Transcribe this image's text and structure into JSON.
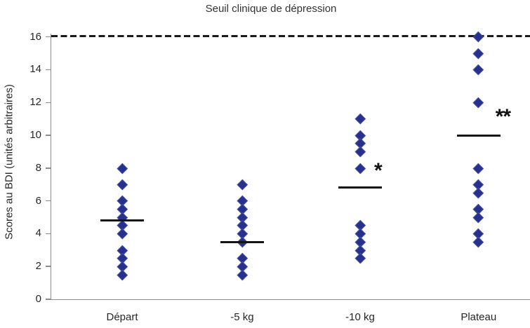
{
  "chart_data": {
    "type": "scatter",
    "title": "Seuil clinique de dépression",
    "ylabel": "Scores au BDI (unités arbitraires)",
    "xlabel": "",
    "ylim": [
      0,
      16.2
    ],
    "yticks": [
      0,
      2,
      4,
      6,
      8,
      10,
      12,
      14,
      16
    ],
    "grid": false,
    "legend": "none",
    "marker": {
      "shape": "diamond",
      "color": "#27318C"
    },
    "threshold": {
      "value": 16,
      "style": "dashed",
      "meaning": "Seuil clinique de dépression"
    },
    "groups": [
      {
        "label": "Départ",
        "points": [
          8,
          7,
          6,
          5.5,
          5,
          4.5,
          4,
          3,
          2.5,
          2,
          1.5
        ],
        "mean_line": 4.8,
        "annotation": {
          "text": "",
          "value": null
        }
      },
      {
        "label": "-5 kg",
        "points": [
          7,
          6,
          5.5,
          5,
          4.5,
          4,
          3.5,
          2.5,
          2,
          1.5
        ],
        "mean_line": 3.5,
        "annotation": {
          "text": "",
          "value": null
        }
      },
      {
        "label": "-10 kg",
        "points": [
          11,
          10,
          9.5,
          9,
          8,
          4.5,
          4,
          3.5,
          3,
          2.5
        ],
        "mean_line": 6.8,
        "annotation": {
          "text": "*",
          "value": 8
        }
      },
      {
        "label": "Plateau",
        "points": [
          16,
          15,
          14,
          12,
          8,
          7,
          6.5,
          5.5,
          5,
          4,
          3.5
        ],
        "mean_line": 10,
        "annotation": {
          "text": "**",
          "value": 11.3
        }
      }
    ],
    "colors": {
      "marker_fill": "#27318C",
      "marker_edge": "#414FA3",
      "mean_line": "#141414",
      "threshold_line": "#1a1a1a",
      "axis": "#8c8c8c",
      "text": "#262626"
    }
  }
}
